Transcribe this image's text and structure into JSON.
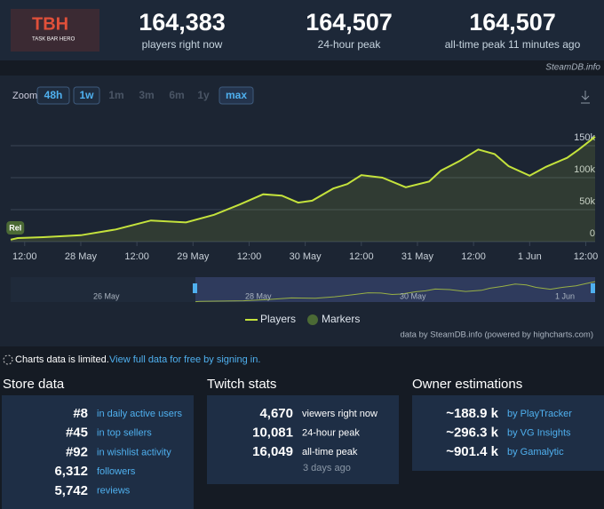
{
  "header": {
    "thumbnail_title": "TBH",
    "thumbnail_subtitle": "TASK BAR HERO",
    "stats": [
      {
        "value": "164,383",
        "label": "players right now"
      },
      {
        "value": "164,507",
        "label": "24-hour peak"
      },
      {
        "value": "164,507",
        "label": "all-time peak 11 minutes ago"
      }
    ],
    "source": "SteamDB.info"
  },
  "chart_controls": {
    "zoom_label": "Zoom",
    "buttons": [
      "48h",
      "1w",
      "1m",
      "3m",
      "6m",
      "1y",
      "max"
    ]
  },
  "chart_data": {
    "type": "line",
    "series": [
      {
        "name": "Players",
        "color": "#c4e23c",
        "x": [
          9,
          10.5,
          16,
          24,
          31.5,
          39,
          46.5,
          52.5,
          58,
          63,
          67,
          70.5,
          73.5,
          78,
          81,
          84,
          88.5,
          93.5,
          98.5,
          101,
          105,
          109,
          112.5,
          115.5,
          120,
          123.5,
          128,
          130.5,
          134
        ],
        "values": [
          3000,
          5500,
          7000,
          10000,
          19000,
          33000,
          30000,
          42000,
          58000,
          74000,
          72000,
          61000,
          64000,
          83000,
          90000,
          104000,
          100000,
          85000,
          94000,
          111000,
          126000,
          144000,
          137000,
          118000,
          103000,
          117000,
          131000,
          144000,
          164000
        ]
      }
    ],
    "markers": {
      "name": "Markers",
      "color": "#4b6a35",
      "items": [
        {
          "label": "Rel",
          "x": 10
        }
      ]
    },
    "xlim": [
      9,
      134
    ],
    "ylim": [
      0,
      200000
    ],
    "xticks": [
      {
        "value": 12,
        "label": "12:00"
      },
      {
        "value": 24,
        "label": "28 May"
      },
      {
        "value": 36,
        "label": "12:00"
      },
      {
        "value": 48,
        "label": "29 May"
      },
      {
        "value": 60,
        "label": "12:00"
      },
      {
        "value": 72,
        "label": "30 May"
      },
      {
        "value": 84,
        "label": "12:00"
      },
      {
        "value": 96,
        "label": "31 May"
      },
      {
        "value": 108,
        "label": "12:00"
      },
      {
        "value": 120,
        "label": "1 Jun"
      },
      {
        "value": 132,
        "label": "12:00"
      }
    ],
    "yticks": [
      0,
      {
        "value": 50000,
        "label": "50k"
      },
      {
        "value": 100000,
        "label": "100k"
      },
      {
        "value": 150000,
        "label": "150k"
      }
    ],
    "grid": true,
    "navigator": {
      "labels": [
        "26 May",
        "28 May",
        "30 May",
        "1 Jun"
      ]
    },
    "credits": "data by SteamDB.info (powered by highcharts.com)"
  },
  "notice": {
    "text": "Charts data is limited.",
    "link": "View full data for free by signing in."
  },
  "store": {
    "title": "Store data",
    "rows": [
      [
        "#8",
        "in daily active users"
      ],
      [
        "#45",
        "in top sellers"
      ],
      [
        "#92",
        "in wishlist activity"
      ],
      [
        "6,312",
        "followers"
      ],
      [
        "5,742",
        "reviews"
      ]
    ]
  },
  "twitch": {
    "title": "Twitch stats",
    "rows": [
      [
        "4,670",
        "viewers right now"
      ],
      [
        "10,081",
        "24-hour peak"
      ],
      [
        "16,049",
        "all-time peak"
      ]
    ],
    "note": "3 days ago"
  },
  "owners": {
    "title": "Owner estimations",
    "rows": [
      [
        "~188.9 k",
        "by PlayTracker"
      ],
      [
        "~296.3 k",
        "by VG Insights"
      ],
      [
        "~901.4 k",
        "by Gamalytic"
      ]
    ]
  }
}
